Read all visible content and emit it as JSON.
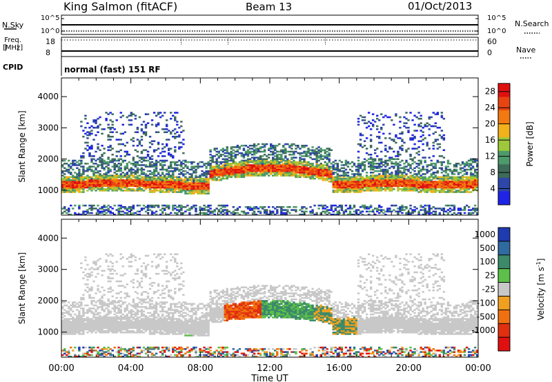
{
  "header": {
    "site": "King Salmon (fitACF)",
    "beam": "Beam 13",
    "date": "01/Oct/2013"
  },
  "status_panels": {
    "nsky_label": "N.Sky",
    "nsearch_label": "N.Search",
    "noise_ticks": [
      "10^5",
      "10^0"
    ],
    "freq_label_line1": "Freq.",
    "freq_label_line2": "[MHz]",
    "freq_ticks": [
      "18",
      "8"
    ],
    "nave_label": "Nave",
    "nave_ticks": [
      "60",
      "0"
    ],
    "cpid_label": "CPID",
    "mode_text": "normal (fast) 151 RF"
  },
  "chart_data": [
    {
      "type": "heatmap",
      "title": "",
      "xlabel": "Time UT",
      "ylabel": "Slant Range [km]",
      "x_ticks": [
        "00:00",
        "04:00",
        "08:00",
        "12:00",
        "16:00",
        "20:00",
        "00:00"
      ],
      "y_ticks": [
        1000,
        2000,
        3000,
        4000
      ],
      "ylim": [
        200,
        4600
      ],
      "xlim_hours": [
        0,
        24
      ],
      "colorbar": {
        "label": "Power [dB]",
        "ticks": [
          4,
          8,
          12,
          16,
          20,
          24,
          28
        ],
        "range": [
          0,
          30
        ],
        "colors": [
          "#1f24e6",
          "#2d46a8",
          "#3d6b5a",
          "#4d9a6a",
          "#9ec83a",
          "#f2b01a",
          "#f27a10",
          "#e84412",
          "#e01010"
        ]
      },
      "regions": [
        {
          "name": "main ionospheric band",
          "t_start": 0,
          "t_end": 24,
          "range_km": [
            1000,
            1400
          ],
          "power_db": 26
        },
        {
          "name": "upper band",
          "t_start": 0,
          "t_end": 24,
          "range_km": [
            1400,
            2100
          ],
          "power_db": 12
        },
        {
          "name": "near-range clutter",
          "t_start": 0,
          "t_end": 24,
          "range_km": [
            200,
            450
          ],
          "power_db": 6
        }
      ]
    },
    {
      "type": "heatmap",
      "title": "",
      "xlabel": "Time UT",
      "ylabel": "Slant Range [km]",
      "x_ticks": [
        "00:00",
        "04:00",
        "08:00",
        "12:00",
        "16:00",
        "20:00",
        "00:00"
      ],
      "y_ticks": [
        1000,
        2000,
        3000,
        4000
      ],
      "ylim": [
        200,
        4600
      ],
      "xlim_hours": [
        0,
        24
      ],
      "colorbar": {
        "label": "Velocity [m s",
        "label_sup": "-1",
        "label_close": "]",
        "ticks": [
          "1000",
          "500",
          "100",
          "25",
          "-25",
          "-100",
          "-500",
          "-1000"
        ],
        "colors": [
          "#1f3bb0",
          "#2f6aa0",
          "#3c8a6a",
          "#5cc04a",
          "#c8c8c8",
          "#f0a020",
          "#f07010",
          "#e03010",
          "#e01010"
        ]
      }
    }
  ]
}
